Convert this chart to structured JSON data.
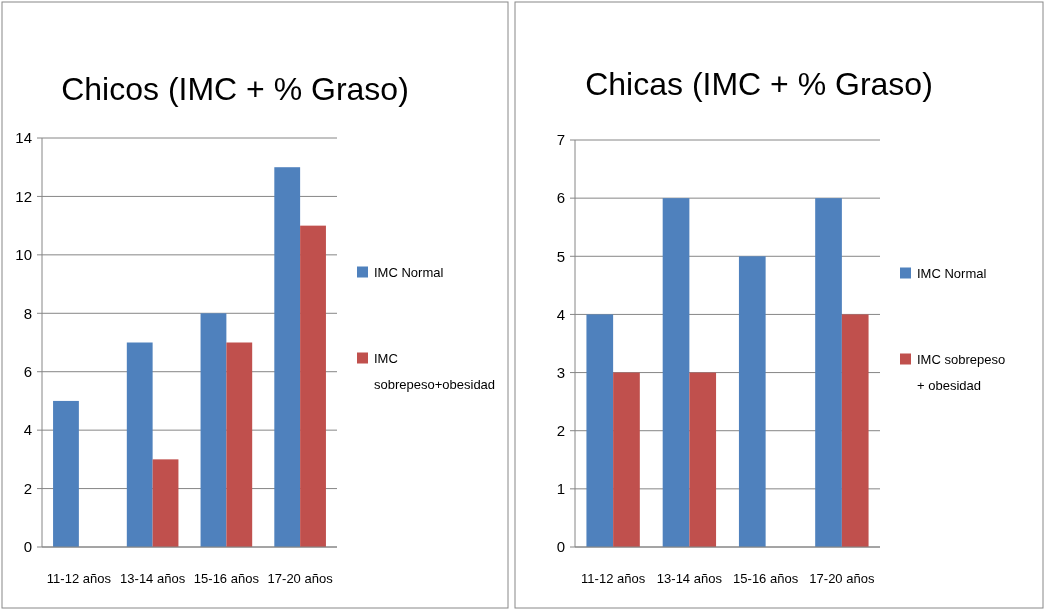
{
  "chart_data": [
    {
      "type": "bar",
      "title": "Chicos (IMC + % Graso)",
      "categories": [
        "11-12 años",
        "13-14 años",
        "15-16 años",
        "17-20 años"
      ],
      "series": [
        {
          "name": "IMC Normal",
          "color": "#4f81bd",
          "values": [
            5,
            7,
            8,
            13
          ]
        },
        {
          "name": "IMC sobrepeso+obesidad",
          "color": "#c0504d",
          "values": [
            0,
            3,
            7,
            11
          ]
        }
      ],
      "ylim": [
        0,
        14
      ],
      "yticks": [
        0,
        2,
        4,
        6,
        8,
        10,
        12,
        14
      ],
      "grid": "y",
      "legend": "right"
    },
    {
      "type": "bar",
      "title": "Chicas (IMC + % Graso)",
      "categories": [
        "11-12 años",
        "13-14 años",
        "15-16 años",
        "17-20 años"
      ],
      "series": [
        {
          "name": "IMC Normal",
          "color": "#4f81bd",
          "values": [
            4,
            6,
            5,
            6
          ]
        },
        {
          "name": "IMC sobrepeso + obesidad",
          "color": "#c0504d",
          "values": [
            3,
            3,
            0,
            4
          ]
        }
      ],
      "ylim": [
        0,
        7
      ],
      "yticks": [
        0,
        1,
        2,
        3,
        4,
        5,
        6,
        7
      ],
      "grid": "y",
      "legend": "right"
    }
  ]
}
